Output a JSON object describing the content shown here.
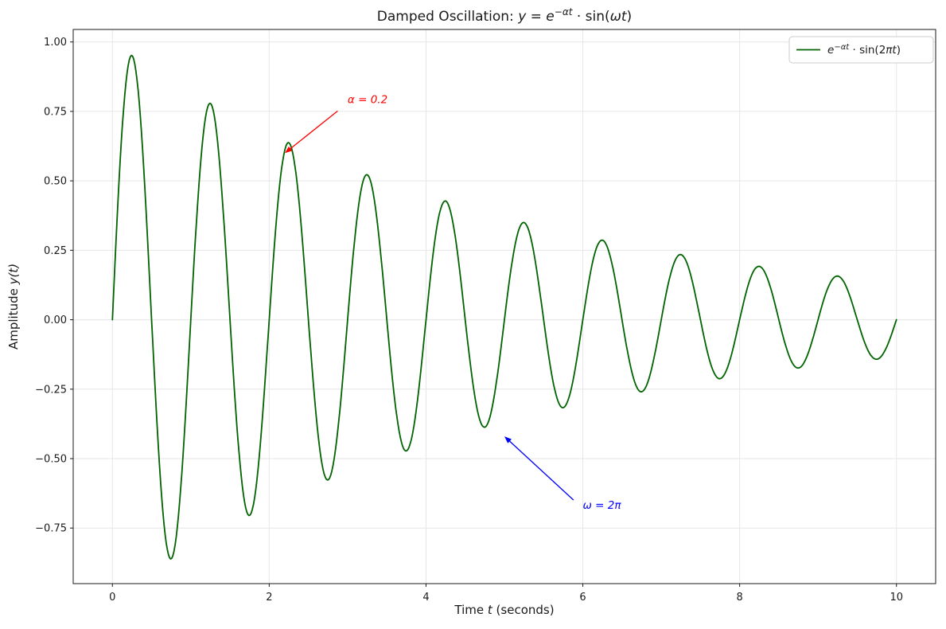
{
  "figure": {
    "title": {
      "prefix": "Damped Oscillation: ",
      "m1": "y = e",
      "sup": "−αt",
      "m2": " · sin(",
      "m3": "ωt",
      "m4": ")"
    },
    "xlabel": {
      "p1": "Time ",
      "p2": "t",
      "p3": " (seconds)"
    },
    "ylabel": {
      "p1": "Amplitude ",
      "p2": "y(t)"
    },
    "legend": {
      "l1": "e",
      "sup": "−αt",
      "l2": " · sin(2",
      "l3": "πt",
      "l4": ")"
    }
  },
  "chart_data": {
    "type": "line",
    "title": "Damped Oscillation: y = e^(−αt) · sin(ωt)",
    "xlabel": "Time t (seconds)",
    "ylabel": "Amplitude y(t)",
    "function": "y = exp(−α·t) · sin(ω·t)",
    "params": {
      "alpha": 0.2,
      "omega": 6.283185307179586,
      "omega_label": "2π",
      "alpha_label": "0.2"
    },
    "t_range": [
      0,
      10
    ],
    "xlim": [
      -0.5,
      10.5
    ],
    "ylim": [
      -0.95,
      1.045
    ],
    "x_ticks": [
      0,
      2,
      4,
      6,
      8,
      10
    ],
    "y_ticks": [
      -0.75,
      -0.5,
      -0.25,
      0,
      0.25,
      0.5,
      0.75,
      1.0
    ],
    "grid": true,
    "grid_color": "#e6e6e6",
    "line_color": "#006400",
    "legend": {
      "position": "upper right",
      "label": "e^(−αt) · sin(2πt)"
    },
    "annotations": [
      {
        "text": "α = 0.2",
        "color": "#ff0000",
        "xy": [
          2.2,
          0.6
        ],
        "xytext": [
          3.0,
          0.78
        ]
      },
      {
        "text": "ω = 2π",
        "color": "#0000ff",
        "xy": [
          5.0,
          -0.42
        ],
        "xytext": [
          6.0,
          -0.68
        ]
      }
    ],
    "samples": {
      "t": [
        0,
        0.25,
        0.5,
        0.75,
        1,
        1.25,
        1.5,
        1.75,
        2,
        2.25,
        2.5,
        2.75,
        3,
        3.25,
        3.5,
        3.75,
        4,
        4.25,
        4.5,
        4.75,
        5,
        5.25,
        5.5,
        5.75,
        6,
        6.25,
        6.5,
        6.75,
        7,
        7.25,
        7.5,
        7.75,
        8,
        8.25,
        8.5,
        8.75,
        9,
        9.25,
        9.5,
        9.75,
        10
      ],
      "y": [
        0,
        0.951,
        0,
        -0.861,
        0,
        0.779,
        0,
        -0.705,
        0,
        0.638,
        0,
        -0.577,
        0,
        0.522,
        0,
        -0.472,
        0,
        0.427,
        0,
        -0.387,
        0,
        0.35,
        0,
        -0.317,
        0,
        0.287,
        0,
        -0.259,
        0,
        0.235,
        0,
        -0.212,
        0,
        0.192,
        0,
        -0.174,
        0,
        0.157,
        0,
        -0.142,
        0
      ]
    }
  }
}
